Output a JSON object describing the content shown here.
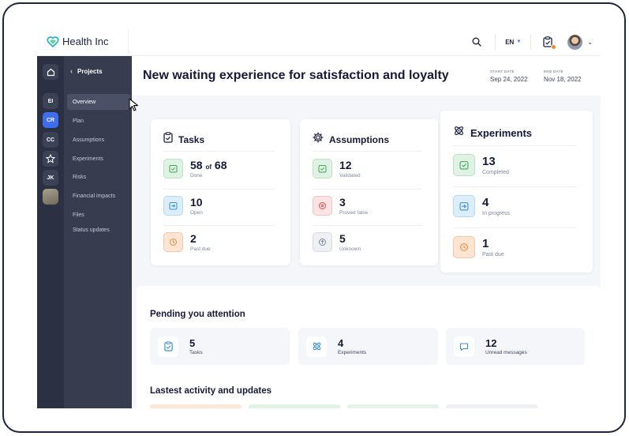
{
  "app": {
    "name": "Health Inc"
  },
  "topbar": {
    "language": "EN"
  },
  "rail": {
    "items": [
      {
        "label": "EI"
      },
      {
        "label": "CR"
      },
      {
        "label": "CC"
      },
      {
        "label": "JK"
      }
    ]
  },
  "nav": {
    "back_label": "Projects",
    "items": [
      {
        "label": "Overview"
      },
      {
        "label": "Plan"
      },
      {
        "label": "Assumptions"
      },
      {
        "label": "Experiments"
      },
      {
        "label": "Risks"
      },
      {
        "label": "Financial impacts"
      },
      {
        "label": "Files"
      },
      {
        "label": "Status updates"
      }
    ]
  },
  "header": {
    "title": "New waiting experience for satisfaction and loyalty",
    "start_label": "START DATE",
    "start_value": "Sep 24, 2022",
    "end_label": "END DATE",
    "end_value": "Nov 18, 2022"
  },
  "tasks": {
    "title": "Tasks",
    "done_value": "58",
    "done_of": "of",
    "done_total": "68",
    "done_label": "Done",
    "open_value": "10",
    "open_label": "Open",
    "pastdue_value": "2",
    "pastdue_label": "Past due"
  },
  "assumptions": {
    "title": "Assumptions",
    "validated_value": "12",
    "validated_label": "Validated",
    "false_value": "3",
    "false_label": "Proved false",
    "unknown_value": "5",
    "unknown_label": "Unknown"
  },
  "experiments": {
    "title": "Experiments",
    "completed_value": "13",
    "completed_label": "Completed",
    "progress_value": "4",
    "progress_label": "In progress",
    "pastdue_value": "1",
    "pastdue_label": "Past due"
  },
  "pending": {
    "title": "Pending you attention",
    "items": [
      {
        "value": "5",
        "label": "Tasks"
      },
      {
        "value": "4",
        "label": "Experiments"
      },
      {
        "value": "12",
        "label": "Unread messages"
      }
    ]
  },
  "activity": {
    "title": "Lastest activity and updates"
  },
  "colors": {
    "accent": "#3d6ef0",
    "sidebar": "#373d4f",
    "rail": "#2b3142",
    "success": "#3fa85a",
    "info": "#3a8fd6",
    "warning": "#ef8a3c",
    "danger": "#e04a4a"
  }
}
